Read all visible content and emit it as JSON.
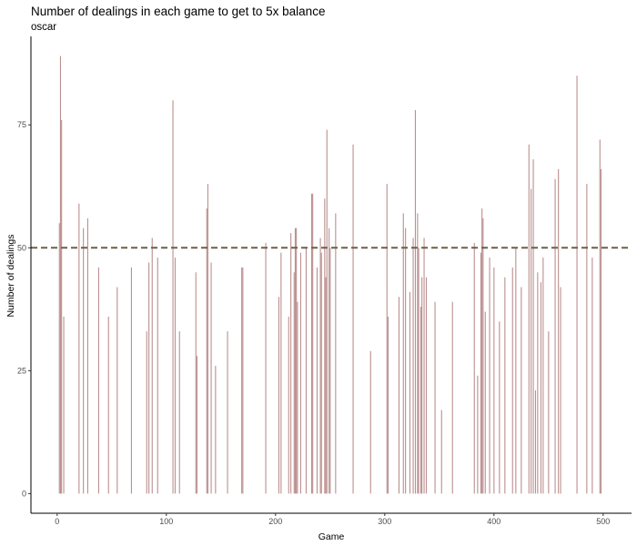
{
  "colors": {
    "bar": "#bc8f8f",
    "reference_line": "#6b6048",
    "axis": "#000000",
    "tick_text": "#4d4d4d"
  },
  "chart_data": {
    "type": "bar",
    "title": "Number of dealings in each game to get to 5x balance",
    "subtitle": "oscar",
    "xlabel": "Game",
    "ylabel": "Number of dealings",
    "xlim": [
      -24,
      526
    ],
    "ylim": [
      -4,
      93
    ],
    "x_ticks": [
      0,
      100,
      200,
      300,
      400,
      500
    ],
    "y_ticks": [
      0,
      25,
      50,
      75
    ],
    "grid": false,
    "reference_line": {
      "y": 50,
      "style": "dashed"
    },
    "x": [
      2,
      3,
      4,
      6,
      20,
      24,
      28,
      38,
      47,
      55,
      68,
      82,
      84,
      87,
      92,
      106,
      108,
      112,
      127,
      128,
      137,
      138,
      141,
      145,
      156,
      169,
      170,
      191,
      203,
      205,
      212,
      214,
      217,
      218,
      219,
      220,
      223,
      228,
      233,
      234,
      238,
      241,
      242,
      245,
      246,
      247,
      249,
      250,
      255,
      271,
      287,
      302,
      303,
      313,
      317,
      319,
      323,
      326,
      328,
      330,
      331,
      333,
      334,
      336,
      338,
      346,
      352,
      362,
      382,
      385,
      388,
      389,
      390,
      392,
      396,
      400,
      405,
      410,
      417,
      420,
      425,
      432,
      434,
      436,
      438,
      440,
      443,
      445,
      450,
      456,
      459,
      461,
      476,
      485,
      490,
      497,
      498
    ],
    "values": [
      55,
      89,
      76,
      36,
      59,
      54,
      56,
      46,
      36,
      42,
      46,
      33,
      47,
      52,
      48,
      80,
      48,
      33,
      45,
      28,
      58,
      63,
      47,
      26,
      33,
      46,
      46,
      51,
      40,
      49,
      36,
      53,
      45,
      54,
      54,
      39,
      49,
      50,
      61,
      61,
      46,
      52,
      49,
      60,
      44,
      74,
      54,
      50,
      57,
      71,
      29,
      63,
      36,
      40,
      57,
      54,
      41,
      52,
      78,
      57,
      50,
      38,
      44,
      52,
      44,
      39,
      17,
      39,
      51,
      24,
      49,
      58,
      56,
      37,
      48,
      46,
      35,
      44,
      46,
      50,
      42,
      71,
      62,
      68,
      21,
      45,
      43,
      48,
      33,
      64,
      66,
      42,
      85,
      63,
      48,
      72,
      66
    ]
  }
}
